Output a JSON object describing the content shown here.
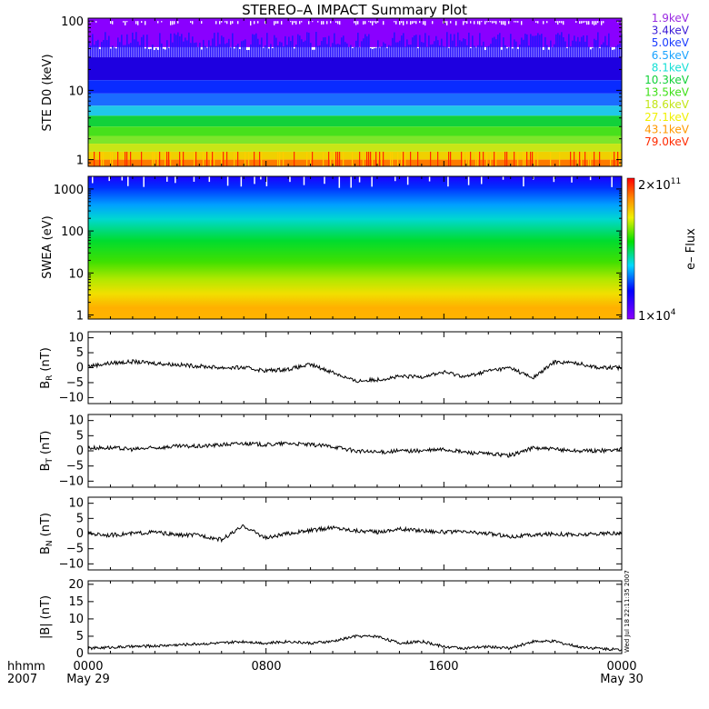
{
  "title": "STEREO–A IMPACT Summary Plot",
  "timestamp": "Wed Jul 18 22:11:35 2007",
  "time_axis": {
    "row1_labels": [
      "hhmm",
      "0000",
      "0800",
      "1600",
      "0000"
    ],
    "row2_labels": [
      "2007",
      "May 29",
      "May 30"
    ],
    "range_hours": [
      0,
      24
    ]
  },
  "colorbar": {
    "label": "e– Flux",
    "max_label": "2×10",
    "max_exp": "11",
    "min_label": "1×10",
    "min_exp": "4",
    "range": [
      10000,
      200000000000
    ],
    "scale": "log"
  },
  "chart_data": [
    {
      "type": "heatmap",
      "panel": "ste",
      "ylabel": "STE D0 (keV)",
      "yscale": "log",
      "ylim": [
        0.8,
        110
      ],
      "yticks": [
        "1",
        "10",
        "100"
      ],
      "energy_channels": [
        "1.9keV",
        "3.4keV",
        "5.0keV",
        "6.5keV",
        "8.1keV",
        "10.3keV",
        "13.5keV",
        "18.6keV",
        "27.1keV",
        "43.1keV",
        "79.0keV"
      ],
      "channel_colors": [
        "#9a2be2",
        "#3a1ad6",
        "#1a3cff",
        "#1aa3ff",
        "#17e0d6",
        "#13d13a",
        "#3ee017",
        "#c3e617",
        "#f0f000",
        "#ff9900",
        "#ff2a00"
      ]
    },
    {
      "type": "heatmap",
      "panel": "swea",
      "ylabel": "SWEA (eV)",
      "yscale": "log",
      "ylim": [
        0.8,
        2000
      ],
      "yticks": [
        "1",
        "10",
        "100",
        "1000"
      ]
    },
    {
      "type": "line",
      "panel": "br",
      "ylabel": "B",
      "ysub": "R",
      "yunit": "(nT)",
      "ylim": [
        -12,
        12
      ],
      "yticks": [
        "−10",
        "−5",
        "0",
        "5",
        "10"
      ],
      "x": [
        0,
        1,
        2,
        3,
        4,
        5,
        6,
        7,
        8,
        9,
        10,
        11,
        12,
        13,
        14,
        15,
        16,
        17,
        18,
        19,
        20,
        21,
        22,
        23,
        24
      ],
      "values": [
        0.5,
        1.5,
        2,
        1.5,
        1,
        0.5,
        0,
        0,
        -1,
        -0.5,
        1,
        -1.5,
        -4.5,
        -4,
        -3,
        -3,
        -1.5,
        -3,
        -1,
        0,
        -3.5,
        2,
        1.5,
        0,
        0
      ]
    },
    {
      "type": "line",
      "panel": "bt",
      "ylabel": "B",
      "ysub": "T",
      "yunit": "(nT)",
      "ylim": [
        -12,
        12
      ],
      "yticks": [
        "−10",
        "−5",
        "0",
        "5",
        "10"
      ],
      "x": [
        0,
        1,
        2,
        3,
        4,
        5,
        6,
        7,
        8,
        9,
        10,
        11,
        12,
        13,
        14,
        15,
        16,
        17,
        18,
        19,
        20,
        21,
        22,
        23,
        24
      ],
      "values": [
        1,
        1,
        0.5,
        1,
        1.5,
        1.5,
        2,
        2.5,
        2,
        2.5,
        2,
        1.5,
        0,
        -0.5,
        0,
        0,
        0.5,
        -0.5,
        -1,
        -1.5,
        1,
        0.5,
        0,
        0,
        0.5
      ]
    },
    {
      "type": "line",
      "panel": "bn",
      "ylabel": "B",
      "ysub": "N",
      "yunit": "(nT)",
      "ylim": [
        -12,
        12
      ],
      "yticks": [
        "−10",
        "−5",
        "0",
        "5",
        "10"
      ],
      "x": [
        0,
        1,
        2,
        3,
        4,
        5,
        6,
        7,
        8,
        9,
        10,
        11,
        12,
        13,
        14,
        15,
        16,
        17,
        18,
        19,
        20,
        21,
        22,
        23,
        24
      ],
      "values": [
        0,
        -0.5,
        0,
        0.5,
        -0.5,
        -0.5,
        -2,
        2.5,
        -1.5,
        0,
        1,
        2,
        1,
        0.5,
        1.5,
        1,
        0.5,
        0.5,
        0,
        -1,
        -0.5,
        0,
        -0.5,
        0,
        0
      ]
    },
    {
      "type": "line",
      "panel": "bmag",
      "ylabel": "|B|",
      "yunit": "(nT)",
      "ylim": [
        0,
        21
      ],
      "yticks": [
        "0",
        "5",
        "10",
        "15",
        "20"
      ],
      "x": [
        0,
        1,
        2,
        3,
        4,
        5,
        6,
        7,
        8,
        9,
        10,
        11,
        12,
        13,
        14,
        15,
        16,
        17,
        18,
        19,
        20,
        21,
        22,
        23,
        24
      ],
      "values": [
        1.5,
        1.8,
        2,
        2.2,
        2.5,
        2.8,
        3,
        3.5,
        3,
        3.5,
        3,
        3.5,
        5,
        5,
        3,
        3.5,
        2,
        1.5,
        2,
        1.5,
        3.5,
        3.5,
        2,
        1.5,
        1
      ]
    }
  ]
}
